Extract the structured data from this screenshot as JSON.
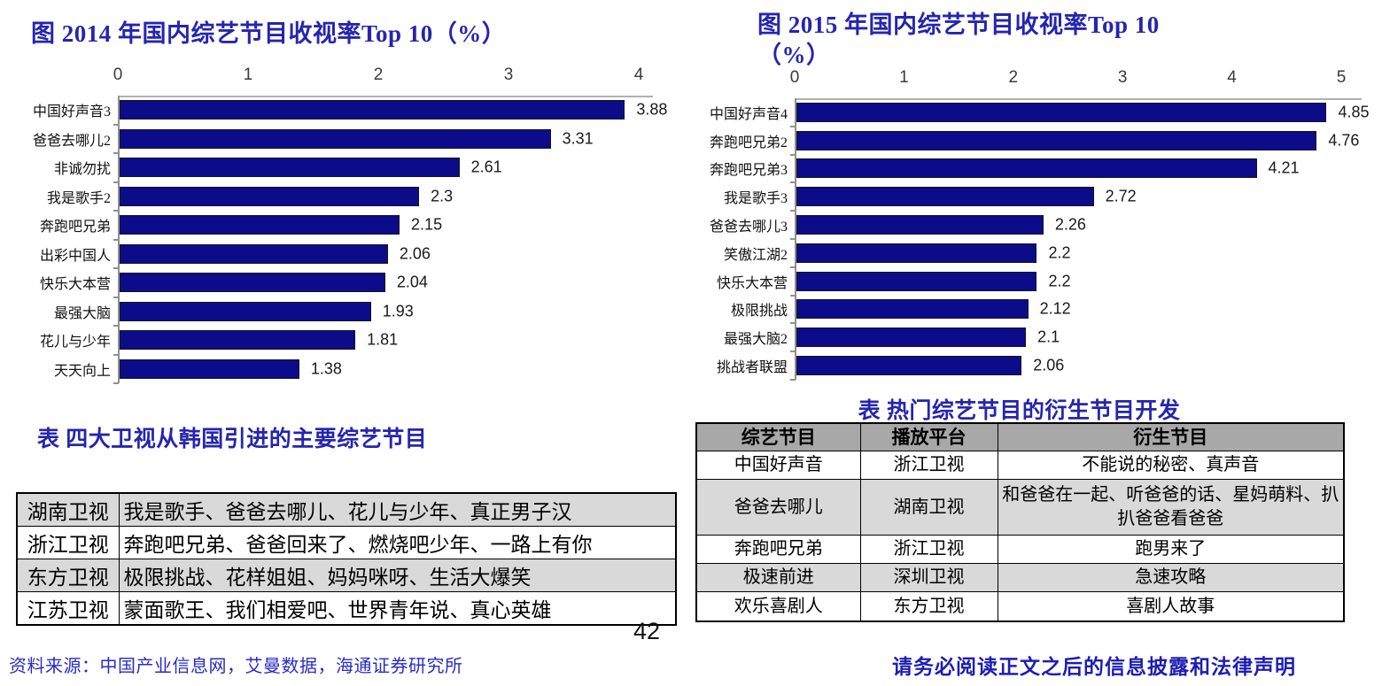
{
  "page": {
    "number": "42",
    "source_note": "资料来源：中国产业信息网，艾曼数据，海通证券研究所",
    "disclaimer": "请务必阅读正文之后的信息披露和法律声明"
  },
  "colors": {
    "bar": "#0c0c8a",
    "title_blue": "#2525b0",
    "table_header_bg": "#a8a8a8",
    "table_shade_bg": "#d9d9d9",
    "source_blue": "#2a2ac8",
    "disclaimer_blue": "#1d1db5"
  },
  "chart_data": [
    {
      "type": "bar",
      "orientation": "horizontal",
      "title": "图 2014 年国内综艺节目收视率Top 10（%）",
      "categories": [
        "中国好声音3",
        "爸爸去哪儿2",
        "非诚勿扰",
        "我是歌手2",
        "奔跑吧兄弟",
        "出彩中国人",
        "快乐大本营",
        "最强大脑",
        "花儿与少年",
        "天天向上"
      ],
      "values": [
        3.88,
        3.31,
        2.61,
        2.3,
        2.15,
        2.06,
        2.04,
        1.93,
        1.81,
        1.38
      ],
      "value_labels": [
        "3.88",
        "3.31",
        "2.61",
        "2.3",
        "2.15",
        "2.06",
        "2.04",
        "1.93",
        "1.81",
        "1.38"
      ],
      "xlim": [
        0,
        4
      ],
      "ticks": [
        "0",
        "1",
        "2",
        "3",
        "4"
      ],
      "grid": false,
      "legend": "none",
      "bar_color": "#0c0c8a"
    },
    {
      "type": "bar",
      "orientation": "horizontal",
      "title": "图 2015 年国内综艺节目收视率Top 10\n（%）",
      "categories": [
        "中国好声音4",
        "奔跑吧兄弟2",
        "奔跑吧兄弟3",
        "我是歌手3",
        "爸爸去哪儿3",
        "笑傲江湖2",
        "快乐大本营",
        "极限挑战",
        "最强大脑2",
        "挑战者联盟"
      ],
      "values": [
        4.85,
        4.76,
        4.21,
        2.72,
        2.26,
        2.2,
        2.2,
        2.12,
        2.1,
        2.06
      ],
      "value_labels": [
        "4.85",
        "4.76",
        "4.21",
        "2.72",
        "2.26",
        "2.2",
        "2.2",
        "2.12",
        "2.1",
        "2.06"
      ],
      "xlim": [
        0,
        5
      ],
      "ticks": [
        "0",
        "1",
        "2",
        "3",
        "4",
        "5"
      ],
      "grid": false,
      "legend": "none",
      "bar_color": "#0c0c8a"
    }
  ],
  "tables": [
    {
      "title": "表 四大卫视从韩国引进的主要综艺节目",
      "headers": [],
      "rows": [
        [
          "湖南卫视",
          "我是歌手、爸爸去哪儿、花儿与少年、真正男子汉"
        ],
        [
          "浙江卫视",
          "奔跑吧兄弟、爸爸回来了、燃烧吧少年、一路上有你"
        ],
        [
          "东方卫视",
          "极限挑战、花样姐姐、妈妈咪呀、生活大爆笑"
        ],
        [
          "江苏卫视",
          "蒙面歌王、我们相爱吧、世界青年说、真心英雄"
        ]
      ]
    },
    {
      "title": "表 热门综艺节目的衍生节目开发",
      "headers": [
        "综艺节目",
        "播放平台",
        "衍生节目"
      ],
      "rows": [
        [
          "中国好声音",
          "浙江卫视",
          "不能说的秘密、真声音"
        ],
        [
          "爸爸去哪儿",
          "湖南卫视",
          "和爸爸在一起、听爸爸的话、星妈萌料、扒扒爸爸看爸爸"
        ],
        [
          "奔跑吧兄弟",
          "浙江卫视",
          "跑男来了"
        ],
        [
          "极速前进",
          "深圳卫视",
          "急速攻略"
        ],
        [
          "欢乐喜剧人",
          "东方卫视",
          "喜剧人故事"
        ]
      ]
    }
  ]
}
